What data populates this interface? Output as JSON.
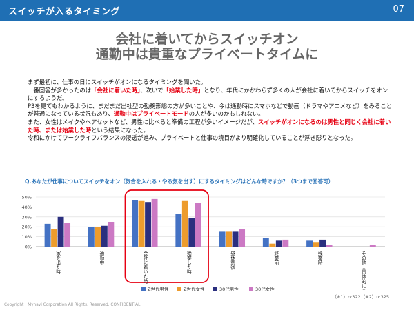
{
  "header": {
    "title": "スイッチが入るタイミング",
    "page_number": "07",
    "color": "#1f6fb4"
  },
  "headline": {
    "line1": "会社に着いてからスイッチオン",
    "line2": "通勤中は貴重なプライベートタイムに"
  },
  "body": {
    "p1": "まず最初に、仕事の日にスイッチがオンになるタイミングを聞いた。",
    "p2_a": "一番回答が多かったのは",
    "p2_b": "「会社に着いた時」",
    "p2_c": "、次いで",
    "p2_d": "「始業した時」",
    "p2_e": "となり、年代にかかわらず多くの人が会社に着いてからスイッチをオンにするようだ。",
    "p3_a": "P3を見てもわかるように、まだまだ出社型の勤務形態の方が多いことや、今は通勤時にスマホなどで動画（ドラマやアニメなど）をみることが普通になっている状況もあり、",
    "p3_b": "通勤中はプライベートモード",
    "p3_c": "の人が多いのかもしれない。",
    "p4_a": "また、女性はメイクやヘアセットなど、男性に比べると準備の工程が多いイメージだが、",
    "p4_b": "スイッチがオンになるのは男性と同じく会社に着いた時、または始業した時",
    "p4_c": "という結果になった。",
    "p5": "令和にかけてワークライフバランスの浸透が進み、プライベートと仕事の境目がより明確化していることが浮き彫りとなった。"
  },
  "question": "Q.あなたが仕事についてスイッチをオン（気合を入れる・やる気を出す）にするタイミングはどんな時ですか？（3つまで回答可）",
  "chart_data": {
    "type": "bar",
    "categories": [
      "家を出た時",
      "通勤中",
      "会社に着いた時",
      "始業した時",
      "昼休憩後",
      "終業前",
      "残業時",
      "その他（具体的に）"
    ],
    "series": [
      {
        "name": "Z世代男性",
        "color": "#4472c4",
        "values": [
          23,
          20,
          47,
          33,
          15,
          9,
          6,
          0
        ]
      },
      {
        "name": "Z世代女性",
        "color": "#ed9c2d",
        "values": [
          18,
          20,
          46,
          46,
          15,
          3,
          4,
          0
        ]
      },
      {
        "name": "30代男性",
        "color": "#2b2f7f",
        "values": [
          30,
          21,
          45,
          29,
          15,
          6,
          7,
          0
        ]
      },
      {
        "name": "30代女性",
        "color": "#cc79c4",
        "values": [
          24,
          25,
          48,
          44,
          18,
          7,
          2,
          2
        ]
      }
    ],
    "ylim": [
      0,
      50
    ],
    "yticks": [
      "0%",
      "10%",
      "20%",
      "30%",
      "40%",
      "50%"
    ],
    "highlight_categories": [
      2,
      3
    ],
    "highlight_color": "#e60012"
  },
  "notes": "（※1）n:322（※2）n:325",
  "copyright": "Copyright　Mynavi Corporation All Rights. Reserved. CONFIDENTIAL"
}
